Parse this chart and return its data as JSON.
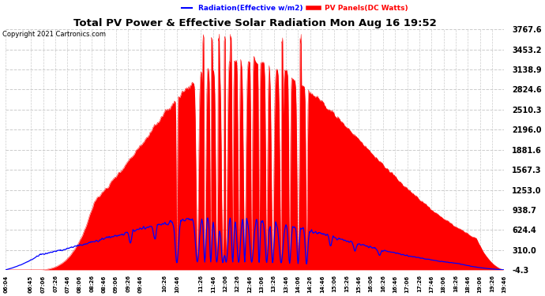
{
  "title": "Total PV Power & Effective Solar Radiation Mon Aug 16 19:52",
  "copyright": "Copyright 2021 Cartronics.com",
  "legend_radiation": "Radiation(Effective w/m2)",
  "legend_pv": "PV Panels(DC Watts)",
  "yticks": [
    3767.6,
    3453.2,
    3138.9,
    2824.6,
    2510.3,
    2196.0,
    1881.6,
    1567.3,
    1253.0,
    938.7,
    624.4,
    310.0,
    -4.3
  ],
  "ymin": -4.3,
  "ymax": 3767.6,
  "bg_color": "#ffffff",
  "plot_bg_color": "#ffffff",
  "grid_color": "#cccccc",
  "pv_color": "#ff0000",
  "radiation_color": "#0000ff",
  "title_color": "#000000",
  "copyright_color": "#000000"
}
